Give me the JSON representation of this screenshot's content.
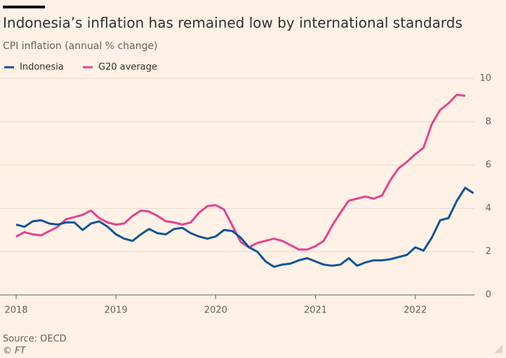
{
  "chart_data": {
    "type": "line",
    "title": "Indonesia’s inflation has remained low by international standards",
    "subtitle": "CPI inflation (annual % change)",
    "source": "Source: OECD",
    "credit": "© FT",
    "x": [
      2018,
      2018.083,
      2018.167,
      2018.25,
      2018.333,
      2018.417,
      2018.5,
      2018.583,
      2018.667,
      2018.75,
      2018.833,
      2018.917,
      2019,
      2019.083,
      2019.167,
      2019.25,
      2019.333,
      2019.417,
      2019.5,
      2019.583,
      2019.667,
      2019.75,
      2019.833,
      2019.917,
      2020,
      2020.083,
      2020.167,
      2020.25,
      2020.333,
      2020.417,
      2020.5,
      2020.583,
      2020.667,
      2020.75,
      2020.833,
      2020.917,
      2021,
      2021.083,
      2021.167,
      2021.25,
      2021.333,
      2021.417,
      2021.5,
      2021.583,
      2021.667,
      2021.75,
      2021.833,
      2021.917,
      2022,
      2022.083,
      2022.167,
      2022.25,
      2022.333,
      2022.417,
      2022.5,
      2022.583
    ],
    "series": [
      {
        "name": "Indonesia",
        "color": "#0f5499",
        "values": [
          3.25,
          3.15,
          3.4,
          3.45,
          3.3,
          3.25,
          3.35,
          3.35,
          3.0,
          3.3,
          3.4,
          3.15,
          2.8,
          2.6,
          2.5,
          2.8,
          3.05,
          2.85,
          2.8,
          3.05,
          3.1,
          2.85,
          2.7,
          2.6,
          2.7,
          3.0,
          2.95,
          2.65,
          2.2,
          2.0,
          1.55,
          1.3,
          1.4,
          1.45,
          1.6,
          1.7,
          1.55,
          1.4,
          1.35,
          1.4,
          1.7,
          1.35,
          1.5,
          1.6,
          1.6,
          1.65,
          1.75,
          1.85,
          2.2,
          2.05,
          2.65,
          3.45,
          3.55,
          4.35,
          4.95,
          4.7
        ]
      },
      {
        "name": "G20 average",
        "color": "#e8418f",
        "values": [
          2.7,
          2.9,
          2.8,
          2.75,
          2.95,
          3.15,
          3.5,
          3.6,
          3.7,
          3.9,
          3.55,
          3.35,
          3.25,
          3.3,
          3.65,
          3.9,
          3.85,
          3.65,
          3.4,
          3.35,
          3.25,
          3.35,
          3.8,
          4.1,
          4.15,
          3.95,
          3.2,
          2.45,
          2.2,
          2.4,
          2.5,
          2.6,
          2.5,
          2.3,
          2.1,
          2.1,
          2.25,
          2.5,
          3.2,
          3.8,
          4.35,
          4.45,
          4.55,
          4.45,
          4.6,
          5.3,
          5.85,
          6.15,
          6.5,
          6.8,
          7.9,
          8.55,
          8.85,
          9.25,
          9.2,
          null
        ]
      }
    ],
    "xlim": [
      2018,
      2022.6
    ],
    "xticks": [
      2018,
      2019,
      2020,
      2021,
      2022
    ],
    "ylim": [
      0,
      10
    ],
    "yticks": [
      0,
      2,
      4,
      6,
      8,
      10
    ],
    "grid": true,
    "legend": "top-left"
  }
}
